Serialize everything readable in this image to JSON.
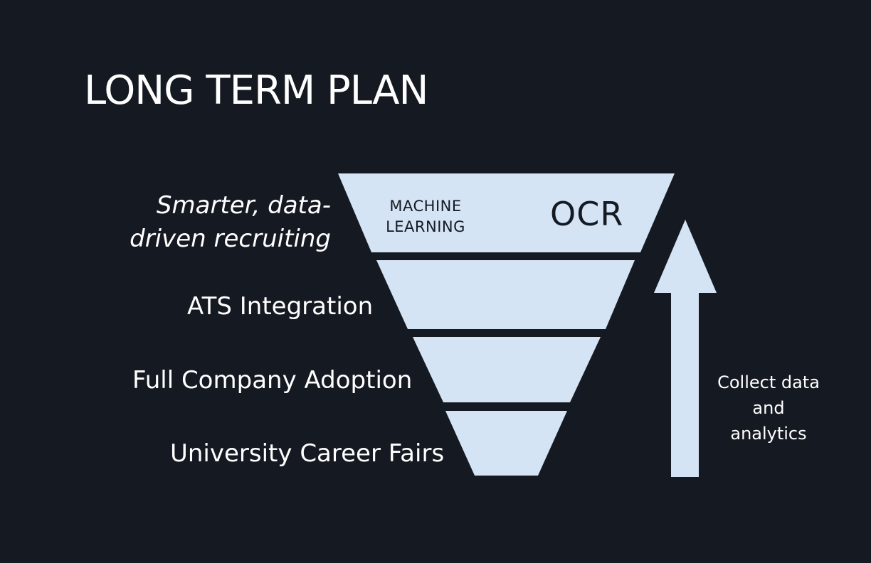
{
  "title": "LONG TERM PLAN",
  "levels": [
    {
      "label": "Smarter, data-driven recruiting"
    },
    {
      "label": "ATS Integration"
    },
    {
      "label": "Full Company Adoption"
    },
    {
      "label": "University Career Fairs"
    }
  ],
  "funnel": {
    "top_left_text": "MACHINE LEARNING",
    "top_right_text": "OCR"
  },
  "arrow_note": "Collect data and analytics",
  "colors": {
    "background": "#151922",
    "funnel_fill": "#d4e4f4",
    "text_light": "#ffffff",
    "text_dark": "#151922"
  }
}
